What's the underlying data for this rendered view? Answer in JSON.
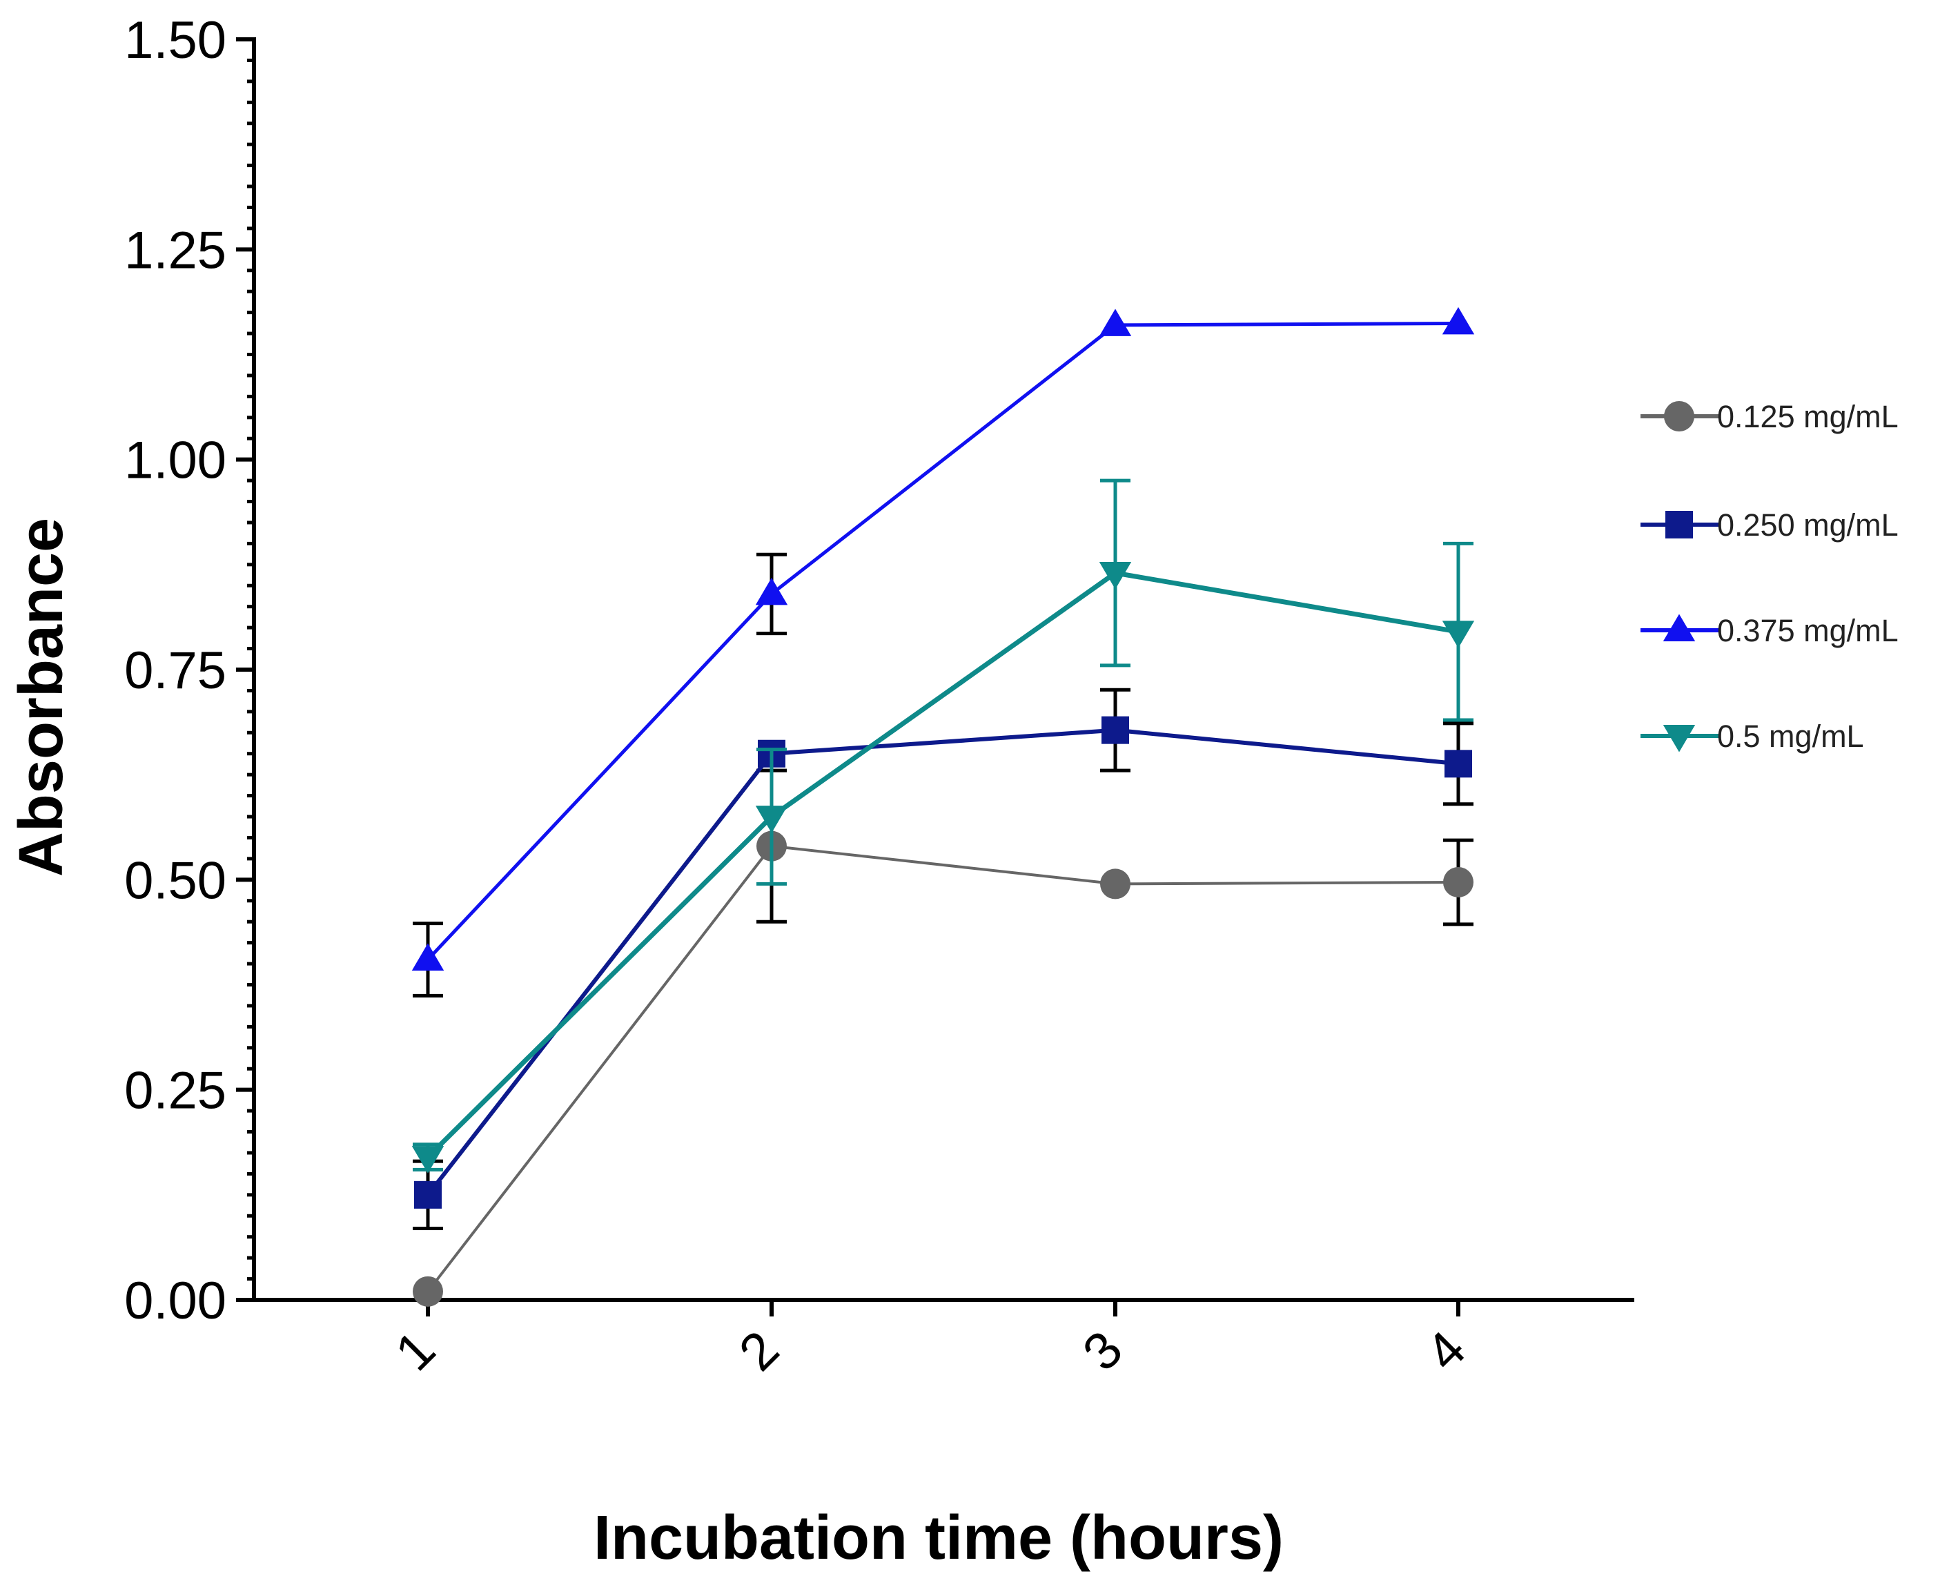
{
  "chart_data": {
    "type": "line",
    "xlabel": "Incubation time (hours)",
    "ylabel": "Absorbance",
    "x": [
      1,
      2,
      3,
      4
    ],
    "x_tick_labels": [
      "1",
      "2",
      "3",
      "4"
    ],
    "ylim": [
      0,
      1.5
    ],
    "y_ticks": [
      0,
      0.25,
      0.5,
      0.75,
      1.0,
      1.25,
      1.5
    ],
    "y_tick_labels": [
      "0.00",
      "0.25",
      "0.50",
      "0.75",
      "1.00",
      "1.25",
      "1.50"
    ],
    "grid": false,
    "legend_position": "right",
    "series": [
      {
        "name": "0.125 mg/mL",
        "marker": "circle",
        "color": "#666666",
        "values": [
          0.01,
          0.54,
          0.495,
          0.497
        ],
        "error": [
          null,
          0.09,
          null,
          0.05
        ],
        "error_color": "#000000"
      },
      {
        "name": "0.250 mg/mL",
        "marker": "square",
        "color": "#0d1a8c",
        "values": [
          0.125,
          0.65,
          0.678,
          0.638
        ],
        "error": [
          0.04,
          null,
          0.048,
          0.048
        ],
        "error_color": "#000000"
      },
      {
        "name": "0.375 mg/mL",
        "marker": "triangle-up",
        "color": "#1010f0",
        "values": [
          0.405,
          0.84,
          1.16,
          1.162
        ],
        "error": [
          0.043,
          0.047,
          null,
          null
        ],
        "error_color": "#000000"
      },
      {
        "name": "0.5 mg/mL",
        "marker": "triangle-down",
        "color": "#0e8a8a",
        "values": [
          0.17,
          0.575,
          0.865,
          0.795
        ],
        "error": [
          0.015,
          0.08,
          0.11,
          0.105
        ],
        "error_color": "#0e8a8a"
      }
    ]
  }
}
